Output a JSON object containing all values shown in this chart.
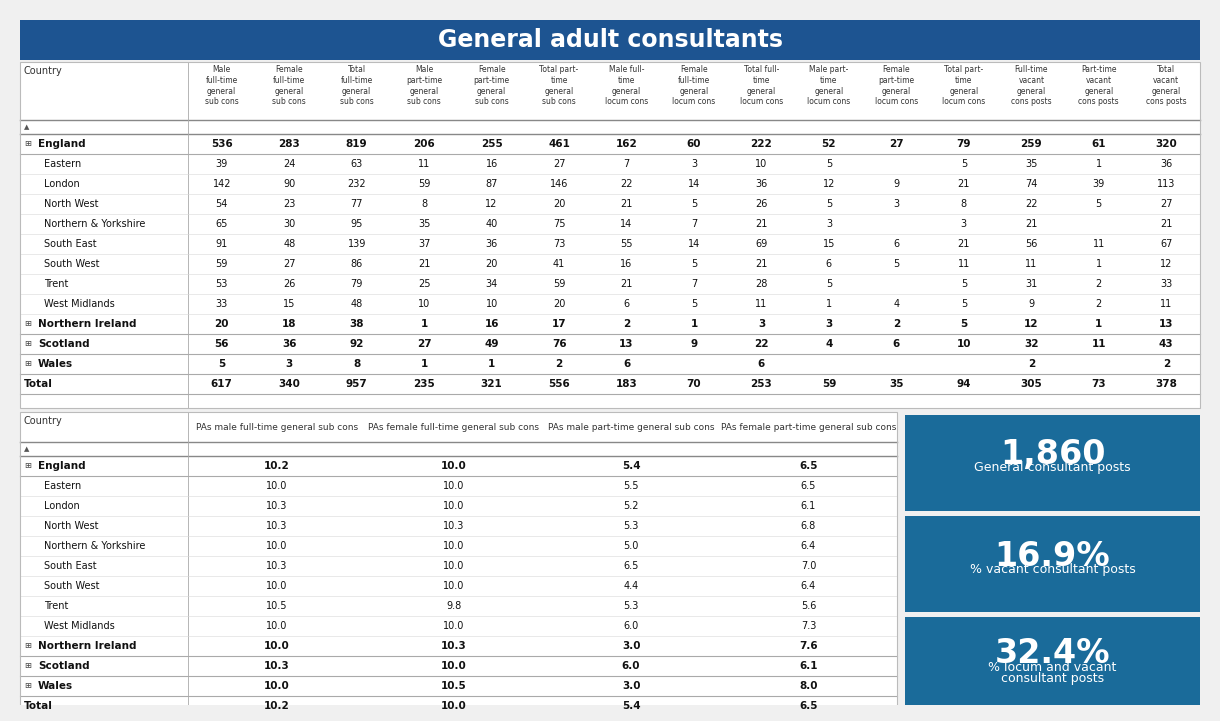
{
  "title": "General adult consultants",
  "title_bg": "#1d5491",
  "title_color": "#ffffff",
  "bg_color": "#f0f0f0",
  "table_bg": "#ffffff",
  "row_line_color": "#d0d0d0",
  "separator_color": "#aaaaaa",
  "col_headers_row1": [
    "Country",
    "Male\nfull-time\ngeneral\nsub cons",
    "Female\nfull-time\ngeneral\nsub cons",
    "Total\nfull-time\ngeneral\nsub cons",
    "Male\npart-time\ngeneral\nsub cons",
    "Female\npart-time\ngeneral\nsub cons",
    "Total part-\ntime\ngeneral\nsub cons",
    "Male full-\ntime\ngeneral\nlocum cons",
    "Female\nfull-time\ngeneral\nlocum cons",
    "Total full-\ntime\ngeneral\nlocum cons",
    "Male part-\ntime\ngeneral\nlocum cons",
    "Female\npart-time\ngeneral\nlocum cons",
    "Total part-\ntime\ngeneral\nlocum cons",
    "Full-time\nvacant\ngeneral\ncons posts",
    "Part-time\nvacant\ngeneral\ncons posts",
    "Total\nvacant\ngeneral\ncons posts"
  ],
  "col_headers_row2": [
    "Country",
    "PAs male full-time general sub cons",
    "PAs female full-time general sub cons",
    "PAs male part-time general sub cons",
    "PAs female part-time general sub cons"
  ],
  "rows_top": [
    {
      "name": "England",
      "bold": true,
      "expand": true,
      "vals": [
        "536",
        "283",
        "819",
        "206",
        "255",
        "461",
        "162",
        "60",
        "222",
        "52",
        "27",
        "79",
        "259",
        "61",
        "320"
      ]
    },
    {
      "name": "Eastern",
      "bold": false,
      "indent": true,
      "vals": [
        "39",
        "24",
        "63",
        "11",
        "16",
        "27",
        "7",
        "3",
        "10",
        "5",
        "",
        "5",
        "35",
        "1",
        "36"
      ]
    },
    {
      "name": "London",
      "bold": false,
      "indent": true,
      "vals": [
        "142",
        "90",
        "232",
        "59",
        "87",
        "146",
        "22",
        "14",
        "36",
        "12",
        "9",
        "21",
        "74",
        "39",
        "113"
      ]
    },
    {
      "name": "North West",
      "bold": false,
      "indent": true,
      "vals": [
        "54",
        "23",
        "77",
        "8",
        "12",
        "20",
        "21",
        "5",
        "26",
        "5",
        "3",
        "8",
        "22",
        "5",
        "27"
      ]
    },
    {
      "name": "Northern & Yorkshire",
      "bold": false,
      "indent": true,
      "vals": [
        "65",
        "30",
        "95",
        "35",
        "40",
        "75",
        "14",
        "7",
        "21",
        "3",
        "",
        "3",
        "21",
        "",
        "21"
      ]
    },
    {
      "name": "South East",
      "bold": false,
      "indent": true,
      "vals": [
        "91",
        "48",
        "139",
        "37",
        "36",
        "73",
        "55",
        "14",
        "69",
        "15",
        "6",
        "21",
        "56",
        "11",
        "67"
      ]
    },
    {
      "name": "South West",
      "bold": false,
      "indent": true,
      "vals": [
        "59",
        "27",
        "86",
        "21",
        "20",
        "41",
        "16",
        "5",
        "21",
        "6",
        "5",
        "11",
        "11",
        "1",
        "12"
      ]
    },
    {
      "name": "Trent",
      "bold": false,
      "indent": true,
      "vals": [
        "53",
        "26",
        "79",
        "25",
        "34",
        "59",
        "21",
        "7",
        "28",
        "5",
        "",
        "5",
        "31",
        "2",
        "33"
      ]
    },
    {
      "name": "West Midlands",
      "bold": false,
      "indent": true,
      "vals": [
        "33",
        "15",
        "48",
        "10",
        "10",
        "20",
        "6",
        "5",
        "11",
        "1",
        "4",
        "5",
        "9",
        "2",
        "11"
      ]
    },
    {
      "name": "Northern Ireland",
      "bold": true,
      "expand": true,
      "vals": [
        "20",
        "18",
        "38",
        "1",
        "16",
        "17",
        "2",
        "1",
        "3",
        "3",
        "2",
        "5",
        "12",
        "1",
        "13"
      ]
    },
    {
      "name": "Scotland",
      "bold": true,
      "expand": true,
      "vals": [
        "56",
        "36",
        "92",
        "27",
        "49",
        "76",
        "13",
        "9",
        "22",
        "4",
        "6",
        "10",
        "32",
        "11",
        "43"
      ]
    },
    {
      "name": "Wales",
      "bold": true,
      "expand": true,
      "vals": [
        "5",
        "3",
        "8",
        "1",
        "1",
        "2",
        "6",
        "",
        "6",
        "",
        "",
        "",
        "2",
        "",
        "2"
      ]
    },
    {
      "name": "Total",
      "bold": true,
      "expand": false,
      "vals": [
        "617",
        "340",
        "957",
        "235",
        "321",
        "556",
        "183",
        "70",
        "253",
        "59",
        "35",
        "94",
        "305",
        "73",
        "378"
      ]
    }
  ],
  "rows_bottom": [
    {
      "name": "England",
      "bold": true,
      "expand": true,
      "vals": [
        "10.2",
        "10.0",
        "5.4",
        "6.5"
      ]
    },
    {
      "name": "Eastern",
      "bold": false,
      "indent": true,
      "vals": [
        "10.0",
        "10.0",
        "5.5",
        "6.5"
      ]
    },
    {
      "name": "London",
      "bold": false,
      "indent": true,
      "vals": [
        "10.3",
        "10.0",
        "5.2",
        "6.1"
      ]
    },
    {
      "name": "North West",
      "bold": false,
      "indent": true,
      "vals": [
        "10.3",
        "10.3",
        "5.3",
        "6.8"
      ]
    },
    {
      "name": "Northern & Yorkshire",
      "bold": false,
      "indent": true,
      "vals": [
        "10.0",
        "10.0",
        "5.0",
        "6.4"
      ]
    },
    {
      "name": "South East",
      "bold": false,
      "indent": true,
      "vals": [
        "10.3",
        "10.0",
        "6.5",
        "7.0"
      ]
    },
    {
      "name": "South West",
      "bold": false,
      "indent": true,
      "vals": [
        "10.0",
        "10.0",
        "4.4",
        "6.4"
      ]
    },
    {
      "name": "Trent",
      "bold": false,
      "indent": true,
      "vals": [
        "10.5",
        "9.8",
        "5.3",
        "5.6"
      ]
    },
    {
      "name": "West Midlands",
      "bold": false,
      "indent": true,
      "vals": [
        "10.0",
        "10.0",
        "6.0",
        "7.3"
      ]
    },
    {
      "name": "Northern Ireland",
      "bold": true,
      "expand": true,
      "vals": [
        "10.0",
        "10.3",
        "3.0",
        "7.6"
      ]
    },
    {
      "name": "Scotland",
      "bold": true,
      "expand": true,
      "vals": [
        "10.3",
        "10.0",
        "6.0",
        "6.1"
      ]
    },
    {
      "name": "Wales",
      "bold": true,
      "expand": true,
      "vals": [
        "10.0",
        "10.5",
        "3.0",
        "8.0"
      ]
    },
    {
      "name": "Total",
      "bold": true,
      "expand": false,
      "vals": [
        "10.2",
        "10.0",
        "5.4",
        "6.5"
      ]
    }
  ],
  "stat_boxes": [
    {
      "value": "1,860",
      "label": "General consultant posts",
      "bg": "#1a6b9a"
    },
    {
      "value": "16.9%",
      "label": "% vacant consultant posts",
      "bg": "#1a6b9a"
    },
    {
      "value": "32.4%",
      "label": "% locum and vacant\nconsultant posts",
      "bg": "#1a6b9a"
    }
  ]
}
